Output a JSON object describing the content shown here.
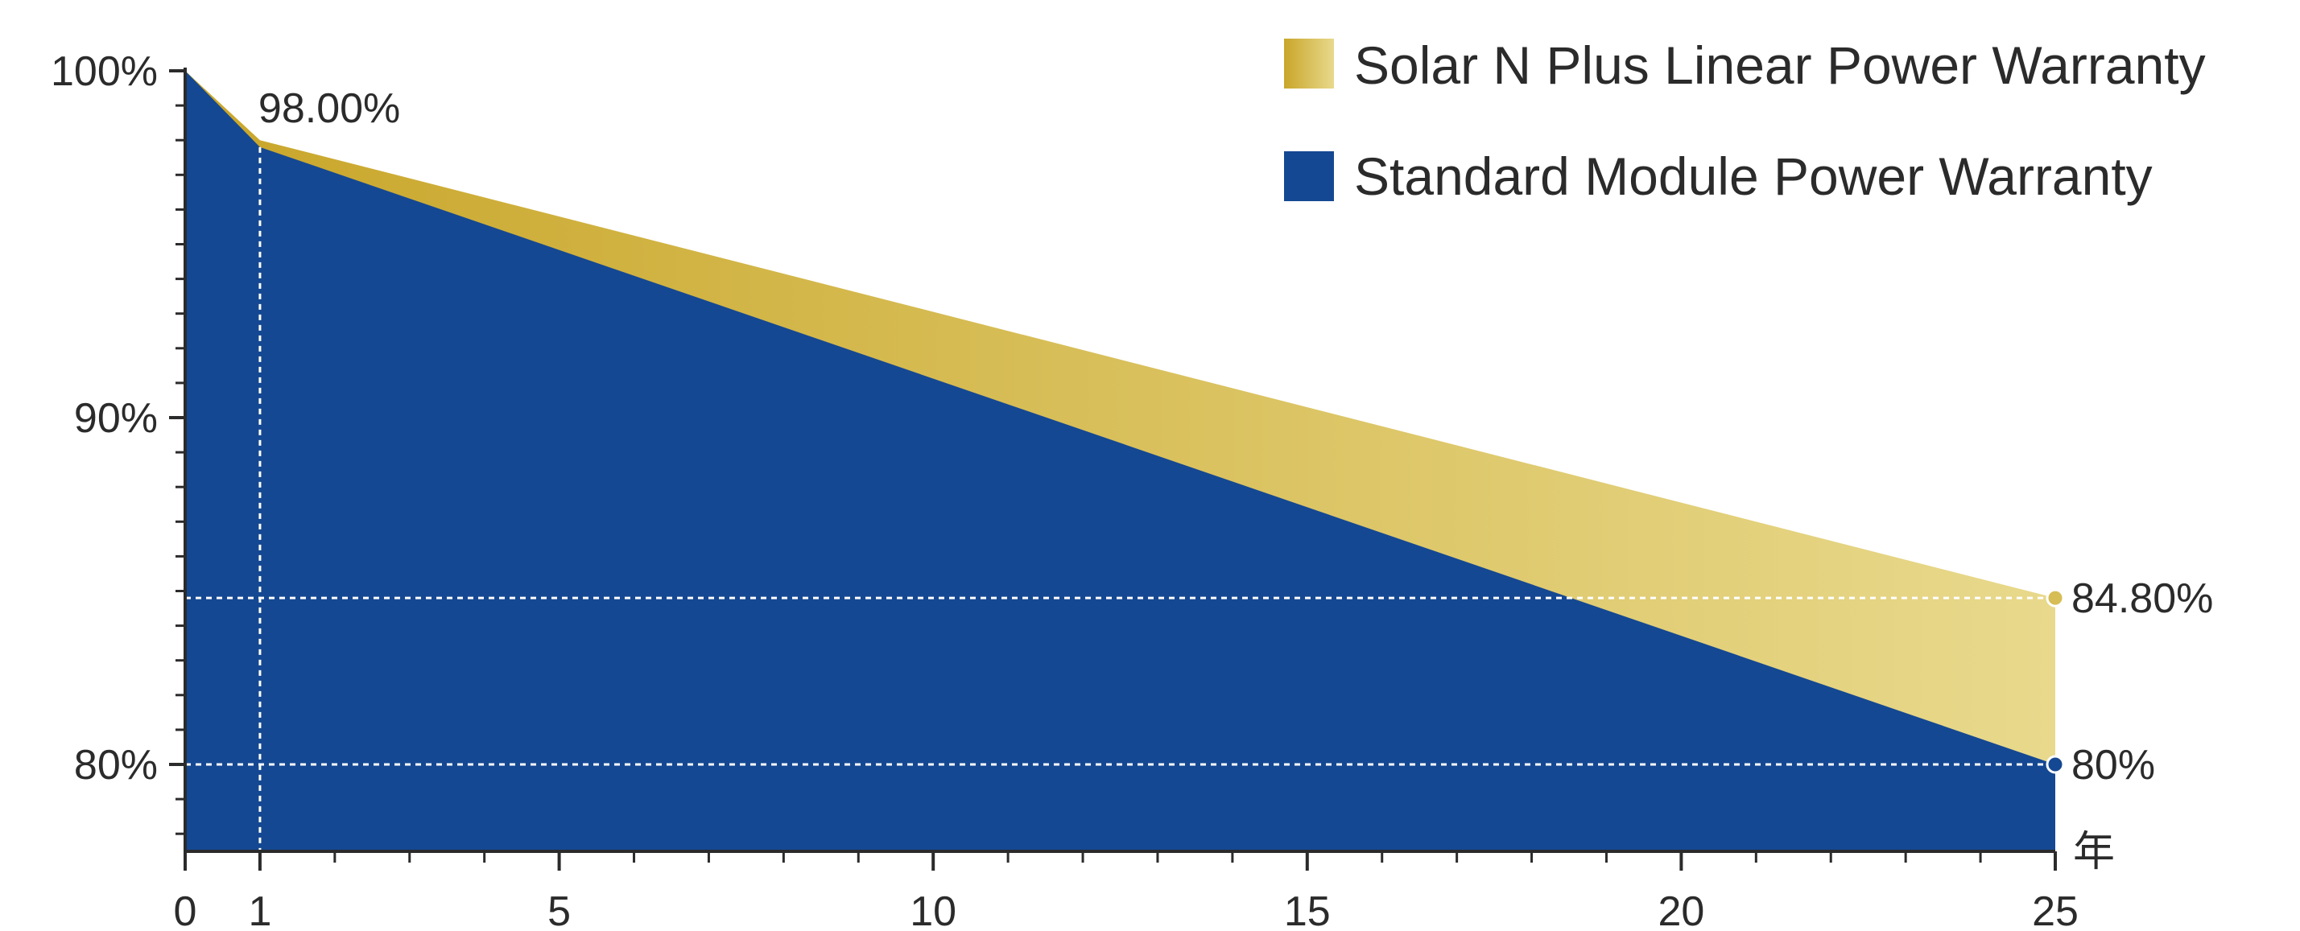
{
  "chart_data": {
    "type": "area",
    "x_unit_label": "年",
    "x": [
      0,
      1,
      25
    ],
    "xticks_major": [
      0,
      1,
      5,
      10,
      15,
      20,
      25
    ],
    "xticks_minor_step": 1,
    "yticks_labeled": [
      {
        "value": 100,
        "label": "100%"
      },
      {
        "value": 90,
        "label": "90%"
      },
      {
        "value": 80,
        "label": "80%"
      }
    ],
    "ylim": [
      77.5,
      100
    ],
    "xlim": [
      0,
      25
    ],
    "series": [
      {
        "name": "Solar N Plus Linear Power Warranty",
        "points": [
          [
            0,
            100
          ],
          [
            1,
            98.0
          ],
          [
            25,
            84.8
          ]
        ],
        "color_start": "#c9a62a",
        "color_end": "#e8d98c"
      },
      {
        "name": "Standard Module Power Warranty",
        "points": [
          [
            0,
            100
          ],
          [
            1,
            97.8
          ],
          [
            25,
            80
          ]
        ],
        "color": "#154892"
      }
    ],
    "annotations": [
      {
        "text": "98.00%",
        "x": 1,
        "y": 98.0
      },
      {
        "text": "84.80%",
        "x": 25,
        "y": 84.8,
        "marker_color": "#d6bd55"
      },
      {
        "text": "80%",
        "x": 25,
        "y": 80,
        "marker_color": "#154892"
      }
    ],
    "reference_lines": [
      {
        "axis": "y",
        "value": 84.8
      },
      {
        "axis": "y",
        "value": 80
      },
      {
        "axis": "x",
        "value": 1
      }
    ],
    "legend_position": "top-right"
  }
}
